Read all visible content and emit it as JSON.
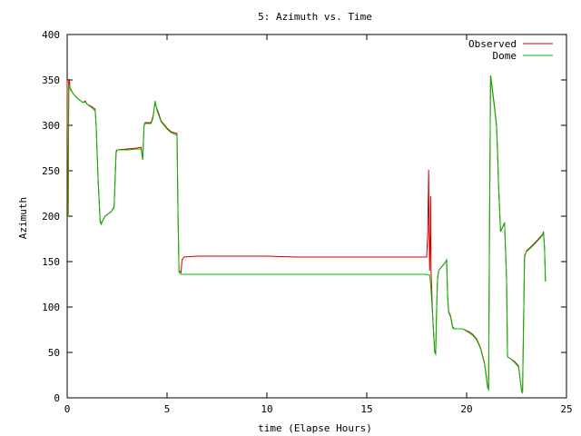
{
  "chart_data": {
    "type": "line",
    "title": "5: Azimuth vs. Time",
    "xlabel": "time (Elapse Hours)",
    "ylabel": "Azimuth",
    "xlim": [
      0,
      25
    ],
    "ylim": [
      0,
      400
    ],
    "x_ticks": [
      0,
      5,
      10,
      15,
      20,
      25
    ],
    "y_ticks": [
      0,
      50,
      100,
      150,
      200,
      250,
      300,
      350,
      400
    ],
    "grid": false,
    "legend_position": "top-right",
    "series": [
      {
        "name": "Observed",
        "color": "#cc0000",
        "points": [
          [
            0.0,
            350
          ],
          [
            0.02,
            200
          ],
          [
            0.05,
            202
          ],
          [
            0.08,
            351
          ],
          [
            0.12,
            348
          ],
          [
            0.14,
            341
          ],
          [
            0.3,
            335
          ],
          [
            0.5,
            330
          ],
          [
            0.8,
            325
          ],
          [
            0.9,
            327
          ],
          [
            1.0,
            323
          ],
          [
            1.2,
            321
          ],
          [
            1.4,
            318
          ],
          [
            1.45,
            300
          ],
          [
            1.55,
            240
          ],
          [
            1.65,
            195
          ],
          [
            1.7,
            192
          ],
          [
            1.8,
            196
          ],
          [
            1.9,
            200
          ],
          [
            2.2,
            205
          ],
          [
            2.35,
            210
          ],
          [
            2.45,
            270
          ],
          [
            2.5,
            273
          ],
          [
            3.0,
            274
          ],
          [
            3.5,
            275
          ],
          [
            3.7,
            276
          ],
          [
            3.78,
            263
          ],
          [
            3.85,
            300
          ],
          [
            3.9,
            303
          ],
          [
            4.2,
            303
          ],
          [
            4.3,
            310
          ],
          [
            4.4,
            325
          ],
          [
            4.5,
            318
          ],
          [
            4.6,
            312
          ],
          [
            4.7,
            305
          ],
          [
            5.0,
            297
          ],
          [
            5.2,
            293
          ],
          [
            5.5,
            291
          ],
          [
            5.55,
            200
          ],
          [
            5.6,
            140
          ],
          [
            5.7,
            138
          ],
          [
            5.75,
            152
          ],
          [
            5.85,
            155
          ],
          [
            6.5,
            156
          ],
          [
            8.0,
            156
          ],
          [
            10.0,
            156
          ],
          [
            11.5,
            155
          ],
          [
            13.0,
            155
          ],
          [
            15.0,
            155
          ],
          [
            17.0,
            155
          ],
          [
            18.0,
            155
          ],
          [
            18.05,
            180
          ],
          [
            18.1,
            251
          ],
          [
            18.12,
            185
          ],
          [
            18.15,
            140
          ],
          [
            18.18,
            180
          ],
          [
            18.2,
            222
          ],
          [
            18.22,
            140
          ],
          [
            18.3,
            90
          ],
          [
            18.4,
            52
          ],
          [
            18.45,
            48
          ],
          [
            18.5,
            100
          ],
          [
            18.55,
            132
          ],
          [
            18.6,
            140
          ],
          [
            18.7,
            143
          ],
          [
            18.9,
            148
          ],
          [
            19.0,
            152
          ],
          [
            19.05,
            112
          ],
          [
            19.1,
            95
          ],
          [
            19.2,
            90
          ],
          [
            19.3,
            78
          ],
          [
            19.4,
            76
          ],
          [
            19.8,
            76
          ],
          [
            20.1,
            73
          ],
          [
            20.3,
            70
          ],
          [
            20.5,
            65
          ],
          [
            20.7,
            55
          ],
          [
            20.9,
            38
          ],
          [
            21.0,
            22
          ],
          [
            21.05,
            12
          ],
          [
            21.1,
            10
          ],
          [
            21.15,
            200
          ],
          [
            21.2,
            355
          ],
          [
            21.3,
            338
          ],
          [
            21.4,
            320
          ],
          [
            21.5,
            300
          ],
          [
            21.55,
            270
          ],
          [
            21.6,
            235
          ],
          [
            21.7,
            183
          ],
          [
            21.8,
            188
          ],
          [
            21.9,
            192
          ],
          [
            22.0,
            130
          ],
          [
            22.05,
            45
          ],
          [
            22.2,
            43
          ],
          [
            22.4,
            40
          ],
          [
            22.6,
            35
          ],
          [
            22.75,
            8
          ],
          [
            22.8,
            5
          ],
          [
            22.9,
            155
          ],
          [
            23.0,
            162
          ],
          [
            23.3,
            168
          ],
          [
            23.6,
            175
          ],
          [
            23.8,
            180
          ],
          [
            23.85,
            183
          ],
          [
            23.9,
            165
          ],
          [
            23.95,
            128
          ]
        ]
      },
      {
        "name": "Dome",
        "color": "#00bb00",
        "points": [
          [
            0.0,
            200
          ],
          [
            0.02,
            198
          ],
          [
            0.05,
            202
          ],
          [
            0.08,
            345
          ],
          [
            0.12,
            343
          ],
          [
            0.14,
            340
          ],
          [
            0.3,
            335
          ],
          [
            0.5,
            330
          ],
          [
            0.8,
            325
          ],
          [
            0.9,
            326
          ],
          [
            1.0,
            323
          ],
          [
            1.2,
            320
          ],
          [
            1.4,
            316
          ],
          [
            1.45,
            300
          ],
          [
            1.55,
            240
          ],
          [
            1.65,
            194
          ],
          [
            1.7,
            191
          ],
          [
            1.8,
            196
          ],
          [
            1.9,
            200
          ],
          [
            2.2,
            205
          ],
          [
            2.35,
            209
          ],
          [
            2.45,
            272
          ],
          [
            2.5,
            273
          ],
          [
            3.0,
            273
          ],
          [
            3.5,
            274
          ],
          [
            3.7,
            274
          ],
          [
            3.78,
            262
          ],
          [
            3.85,
            300
          ],
          [
            3.9,
            302
          ],
          [
            4.2,
            302
          ],
          [
            4.3,
            308
          ],
          [
            4.4,
            327
          ],
          [
            4.5,
            316
          ],
          [
            4.6,
            310
          ],
          [
            4.7,
            304
          ],
          [
            5.0,
            296
          ],
          [
            5.2,
            292
          ],
          [
            5.5,
            289
          ],
          [
            5.55,
            200
          ],
          [
            5.6,
            138
          ],
          [
            5.7,
            136
          ],
          [
            6.0,
            136
          ],
          [
            8.0,
            136
          ],
          [
            10.0,
            136
          ],
          [
            12.0,
            136
          ],
          [
            14.0,
            136
          ],
          [
            16.0,
            136
          ],
          [
            18.0,
            136
          ],
          [
            18.15,
            135
          ],
          [
            18.2,
            125
          ],
          [
            18.3,
            90
          ],
          [
            18.4,
            50
          ],
          [
            18.45,
            48
          ],
          [
            18.5,
            100
          ],
          [
            18.55,
            133
          ],
          [
            18.6,
            140
          ],
          [
            18.7,
            143
          ],
          [
            18.9,
            148
          ],
          [
            19.0,
            152
          ],
          [
            19.05,
            112
          ],
          [
            19.1,
            94
          ],
          [
            19.2,
            89
          ],
          [
            19.3,
            77
          ],
          [
            19.4,
            76
          ],
          [
            19.8,
            76
          ],
          [
            20.1,
            72
          ],
          [
            20.3,
            69
          ],
          [
            20.5,
            64
          ],
          [
            20.7,
            54
          ],
          [
            20.9,
            37
          ],
          [
            21.0,
            20
          ],
          [
            21.05,
            11
          ],
          [
            21.1,
            9
          ],
          [
            21.15,
            200
          ],
          [
            21.2,
            355
          ],
          [
            21.3,
            336
          ],
          [
            21.4,
            318
          ],
          [
            21.5,
            298
          ],
          [
            21.55,
            268
          ],
          [
            21.6,
            233
          ],
          [
            21.7,
            183
          ],
          [
            21.8,
            188
          ],
          [
            21.9,
            193
          ],
          [
            22.0,
            130
          ],
          [
            22.05,
            45
          ],
          [
            22.2,
            43
          ],
          [
            22.4,
            39
          ],
          [
            22.6,
            34
          ],
          [
            22.75,
            8
          ],
          [
            22.8,
            5
          ],
          [
            22.9,
            157
          ],
          [
            23.0,
            161
          ],
          [
            23.3,
            167
          ],
          [
            23.6,
            174
          ],
          [
            23.8,
            179
          ],
          [
            23.85,
            182
          ],
          [
            23.9,
            165
          ],
          [
            23.95,
            128
          ]
        ]
      }
    ]
  }
}
